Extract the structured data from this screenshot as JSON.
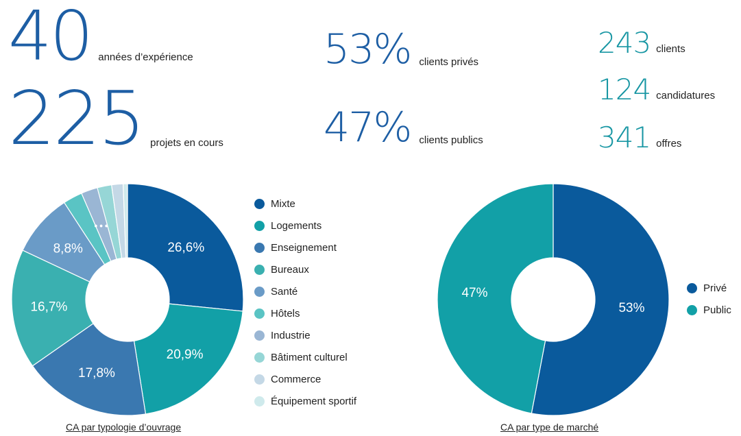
{
  "stats": {
    "years": {
      "value": "40",
      "label": "années d’expérience"
    },
    "projects": {
      "value": "225",
      "label": "projets en cours"
    },
    "private_pct": {
      "value": "53%",
      "label": "clients privés"
    },
    "public_pct": {
      "value": "47%",
      "label": "clients publics"
    },
    "clients": {
      "value": "243",
      "label": "clients"
    },
    "applications": {
      "value": "124",
      "label": "candidatures"
    },
    "offers": {
      "value": "341",
      "label": "offres"
    }
  },
  "colors": {
    "dark_blue": "#1d5ea4",
    "teal": "#1796a3"
  },
  "chart_data": [
    {
      "type": "pie",
      "variant": "donut",
      "caption": "CA par typologie d’ouvrage",
      "legend_position": "right",
      "slices": [
        {
          "name": "Mixte",
          "value": 26.6,
          "label": "26,6%",
          "color": "#0a5a9c"
        },
        {
          "name": "Logements",
          "value": 20.9,
          "label": "20,9%",
          "color": "#12a0a7"
        },
        {
          "name": "Enseignement",
          "value": 17.8,
          "label": "17,8%",
          "color": "#3a78b0"
        },
        {
          "name": "Bureaux",
          "value": 16.7,
          "label": "16,7%",
          "color": "#3ab0b0"
        },
        {
          "name": "Santé",
          "value": 8.8,
          "label": "8,8%",
          "color": "#6a9bc7"
        },
        {
          "name": "Hôtels",
          "value": 2.7,
          "label": "",
          "color": "#5ac4c4"
        },
        {
          "name": "Industrie",
          "value": 2.3,
          "label": "",
          "color": "#9ab6d4"
        },
        {
          "name": "Bâtiment culturel",
          "value": 2.0,
          "label": "",
          "color": "#96d6d6"
        },
        {
          "name": "Commerce",
          "value": 1.6,
          "label": "",
          "color": "#c4d8e6"
        },
        {
          "name": "Équipement sportif",
          "value": 0.6,
          "label": "",
          "color": "#cfeaec"
        }
      ],
      "ellipsis_label": "•••"
    },
    {
      "type": "pie",
      "variant": "donut",
      "caption": "CA par type de marché",
      "legend_position": "right",
      "slices": [
        {
          "name": "Privé",
          "value": 53,
          "label": "53%",
          "color": "#0a5a9c"
        },
        {
          "name": "Public",
          "value": 47,
          "label": "47%",
          "color": "#12a0a7"
        }
      ]
    }
  ]
}
